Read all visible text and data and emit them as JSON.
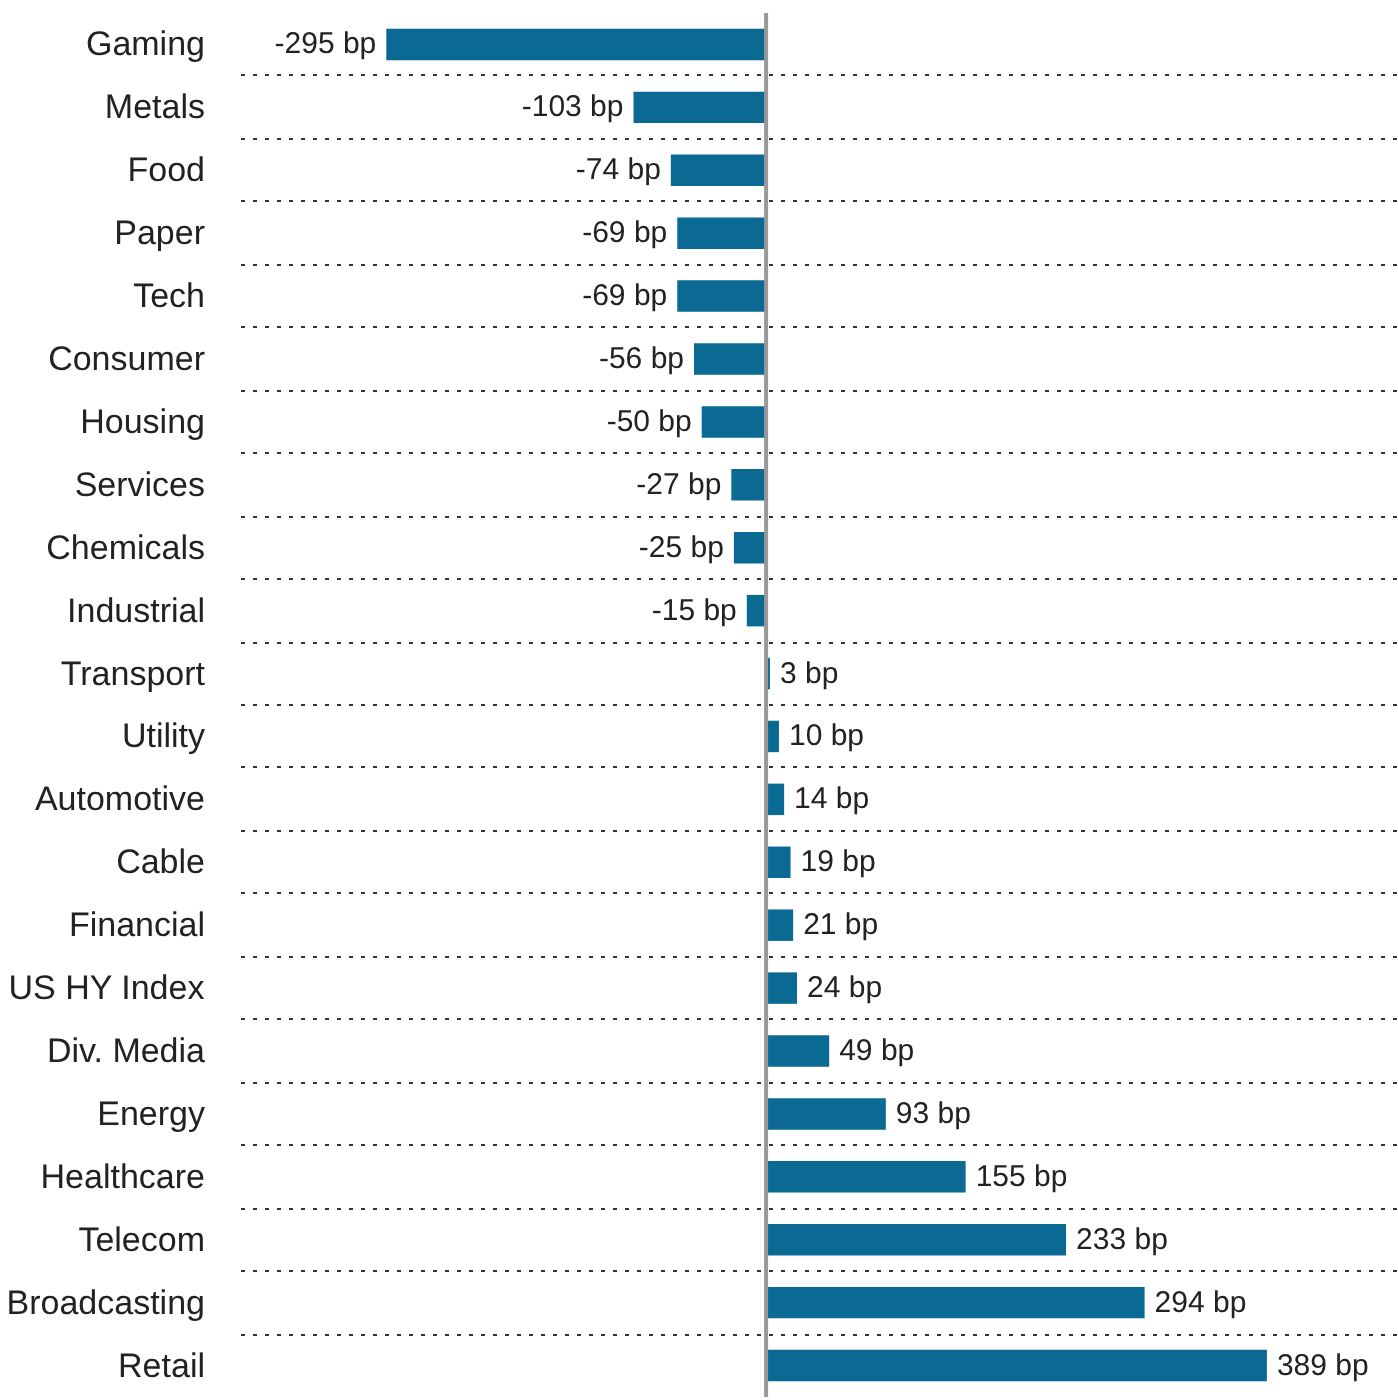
{
  "chart_data": {
    "type": "bar",
    "orientation": "horizontal",
    "grid": "y",
    "color": "#0a6a94",
    "categories": [
      "Gaming",
      "Metals",
      "Food",
      "Paper",
      "Tech",
      "Consumer",
      "Housing",
      "Services",
      "Chemicals",
      "Industrial",
      "Transport",
      "Utility",
      "Automotive",
      "Cable",
      "Financial",
      "US HY Index",
      "Div. Media",
      "Energy",
      "Healthcare",
      "Telecom",
      "Broadcasting",
      "Retail"
    ],
    "values": [
      -295,
      -103,
      -74,
      -69,
      -69,
      -56,
      -50,
      -27,
      -25,
      -15,
      3,
      10,
      14,
      19,
      21,
      24,
      49,
      93,
      155,
      233,
      294,
      389
    ],
    "value_labels": [
      "-295 bp",
      "-103 bp",
      "-74 bp",
      "-69 bp",
      "-69 bp",
      "-56 bp",
      "-50 bp",
      "-27 bp",
      "-25 bp",
      "-15 bp",
      "3 bp",
      "10 bp",
      "14 bp",
      "19 bp",
      "21 bp",
      "24 bp",
      "49 bp",
      "93 bp",
      "155 bp",
      "233 bp",
      "294 bp",
      "389 bp"
    ]
  }
}
